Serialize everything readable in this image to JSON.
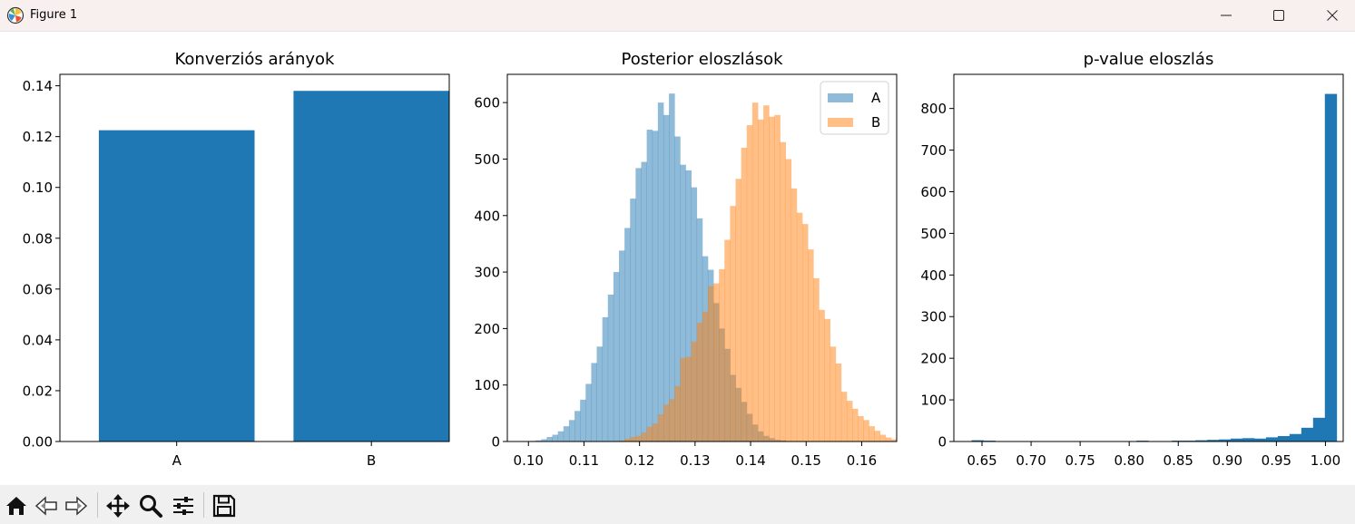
{
  "window": {
    "title": "Figure 1"
  },
  "icons": {
    "app": "matplotlib-icon",
    "minimize": "minimize-icon",
    "maximize": "maximize-icon",
    "close": "close-icon"
  },
  "toolbar": {
    "buttons": [
      "home-icon",
      "back-arrow-icon",
      "forward-arrow-icon",
      "pan-icon",
      "zoom-icon",
      "configure-subplots-icon",
      "save-icon"
    ]
  },
  "colors": {
    "blue": "#1f77b4",
    "orange": "#ff7f0e",
    "hist_blue": "#8fb9da",
    "hist_orange": "#ffbe86",
    "overlap": "#c99c74"
  },
  "chart_data": [
    {
      "type": "bar",
      "title": "Konverziós arányok",
      "categories": [
        "A",
        "B"
      ],
      "values": [
        0.1225,
        0.138
      ],
      "ylim": [
        0,
        0.1445
      ],
      "yticks": [
        0.0,
        0.02,
        0.04,
        0.06,
        0.08,
        0.1,
        0.12,
        0.14
      ],
      "ytick_labels": [
        "0.00",
        "0.02",
        "0.04",
        "0.06",
        "0.08",
        "0.10",
        "0.12",
        "0.14"
      ],
      "color": "#1f77b4",
      "grid": false
    },
    {
      "type": "histogram",
      "title": "Posterior eloszlások",
      "legend": {
        "position": "top-right",
        "entries": [
          "A",
          "B"
        ]
      },
      "xlim": [
        0.0962,
        0.1663
      ],
      "ylim": [
        0,
        650
      ],
      "xticks": [
        0.1,
        0.11,
        0.12,
        0.13,
        0.14,
        0.15,
        0.16
      ],
      "xtick_labels": [
        "0.10",
        "0.11",
        "0.12",
        "0.13",
        "0.14",
        "0.15",
        "0.16"
      ],
      "yticks": [
        0,
        100,
        200,
        300,
        400,
        500,
        600
      ],
      "ytick_labels": [
        "0",
        "100",
        "200",
        "300",
        "400",
        "500",
        "600"
      ],
      "alpha": 0.5,
      "series": [
        {
          "name": "A",
          "color": "#1f77b4",
          "x_start": 0.1003,
          "bin_width": 0.001,
          "counts": [
            1,
            2,
            4,
            8,
            12,
            18,
            27,
            38,
            54,
            74,
            102,
            139,
            168,
            220,
            260,
            300,
            338,
            378,
            430,
            484,
            495,
            552,
            550,
            600,
            578,
            616,
            540,
            490,
            480,
            450,
            395,
            328,
            304,
            245,
            200,
            164,
            118,
            95,
            70,
            49,
            30,
            18,
            10,
            6,
            3,
            2
          ]
        },
        {
          "name": "B",
          "color": "#ff7f0e",
          "x_start": 0.1153,
          "bin_width": 0.001,
          "counts": [
            1,
            2,
            5,
            8,
            10,
            16,
            26,
            32,
            48,
            65,
            75,
            98,
            148,
            150,
            177,
            210,
            230,
            275,
            280,
            305,
            357,
            417,
            465,
            520,
            560,
            600,
            570,
            595,
            575,
            578,
            530,
            500,
            448,
            405,
            385,
            340,
            289,
            233,
            217,
            168,
            138,
            88,
            72,
            58,
            45,
            38,
            27,
            19,
            12,
            7,
            4,
            2
          ]
        }
      ]
    },
    {
      "type": "histogram",
      "title": "p-value eloszlás",
      "x_start": 0.6394,
      "bin_width": 0.012,
      "counts": [
        3,
        2,
        0,
        0,
        1,
        0,
        0,
        0,
        0,
        1,
        0,
        0,
        1,
        0,
        2,
        1,
        1,
        2,
        2,
        3,
        4,
        5,
        7,
        8,
        7,
        10,
        13,
        18,
        33,
        57,
        835
      ],
      "xlim": [
        0.6213,
        1.0181
      ],
      "ylim": [
        0,
        882
      ],
      "xticks": [
        0.65,
        0.7,
        0.75,
        0.8,
        0.85,
        0.9,
        0.95,
        1.0
      ],
      "xtick_labels": [
        "0.65",
        "0.70",
        "0.75",
        "0.80",
        "0.85",
        "0.90",
        "0.95",
        "1.00"
      ],
      "yticks": [
        0,
        100,
        200,
        300,
        400,
        500,
        600,
        700,
        800
      ],
      "ytick_labels": [
        "0",
        "100",
        "200",
        "300",
        "400",
        "500",
        "600",
        "700",
        "800"
      ],
      "color": "#1f77b4"
    }
  ]
}
